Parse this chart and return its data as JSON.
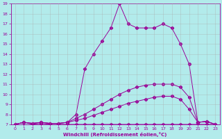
{
  "xlabel": "Windchill (Refroidissement éolien,°C)",
  "background_color": "#b2ebeb",
  "line_color": "#990099",
  "grid_color": "#aaaaaa",
  "xlim": [
    -0.5,
    23.5
  ],
  "ylim": [
    7,
    19
  ],
  "yticks": [
    7,
    8,
    9,
    10,
    11,
    12,
    13,
    14,
    15,
    16,
    17,
    18,
    19
  ],
  "xticks": [
    0,
    1,
    2,
    3,
    4,
    5,
    6,
    7,
    8,
    9,
    10,
    11,
    12,
    13,
    14,
    15,
    16,
    17,
    18,
    19,
    20,
    21,
    22,
    23
  ],
  "line1_x": [
    0,
    1,
    2,
    3,
    4,
    5,
    6,
    7,
    8,
    9,
    10,
    11,
    12,
    13,
    14,
    15,
    16,
    17,
    18,
    19,
    20,
    21,
    22,
    23
  ],
  "line1_y": [
    7.0,
    7.2,
    7.0,
    7.1,
    7.0,
    7.0,
    7.0,
    7.0,
    7.0,
    7.0,
    7.0,
    7.0,
    7.0,
    7.0,
    7.0,
    7.0,
    7.0,
    7.0,
    7.0,
    7.0,
    7.0,
    7.0,
    7.0,
    7.0
  ],
  "line2_x": [
    0,
    1,
    2,
    3,
    4,
    5,
    6,
    7,
    8,
    9,
    10,
    11,
    12,
    13,
    14,
    15,
    16,
    17,
    18,
    19,
    20,
    21,
    22,
    23
  ],
  "line2_y": [
    7.0,
    7.2,
    7.1,
    7.2,
    7.1,
    7.1,
    7.2,
    7.4,
    7.6,
    7.9,
    8.2,
    8.5,
    8.8,
    9.1,
    9.3,
    9.5,
    9.7,
    9.8,
    9.8,
    9.5,
    8.5,
    7.2,
    7.3,
    7.0
  ],
  "line3_x": [
    0,
    1,
    2,
    3,
    4,
    5,
    6,
    7,
    8,
    9,
    10,
    11,
    12,
    13,
    14,
    15,
    16,
    17,
    18,
    19,
    20,
    21,
    22,
    23
  ],
  "line3_y": [
    7.0,
    7.2,
    7.1,
    7.2,
    7.1,
    7.1,
    7.2,
    7.6,
    8.0,
    8.5,
    9.0,
    9.5,
    10.0,
    10.4,
    10.7,
    10.9,
    11.0,
    11.0,
    11.0,
    10.7,
    9.7,
    7.2,
    7.3,
    7.0
  ],
  "line4_x": [
    0,
    1,
    2,
    3,
    4,
    5,
    6,
    7,
    8,
    9,
    10,
    11,
    12,
    13,
    14,
    15,
    16,
    17,
    18,
    19,
    20,
    21,
    22,
    23
  ],
  "line4_y": [
    7.0,
    7.2,
    7.1,
    7.2,
    7.1,
    7.1,
    7.2,
    8.0,
    12.5,
    14.0,
    15.3,
    16.6,
    19.0,
    17.0,
    16.6,
    16.6,
    16.6,
    17.0,
    16.6,
    15.0,
    13.0,
    7.2,
    7.3,
    7.0
  ]
}
